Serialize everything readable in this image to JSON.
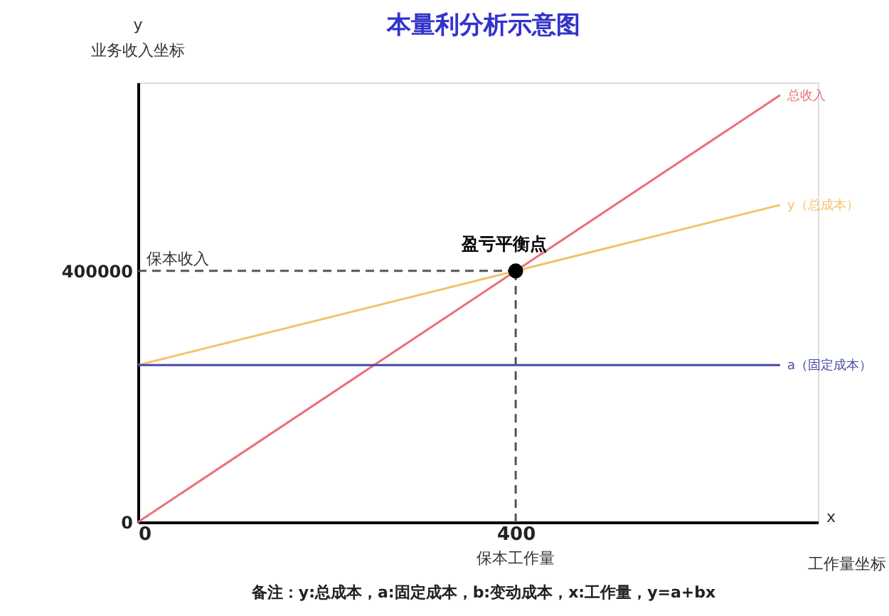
{
  "chart_data": {
    "type": "line",
    "title": "本量利分析示意图",
    "xlabel": "x\n工作量坐标",
    "ylabel": "y\n业务收入坐标",
    "xlim": [
      0,
      720
    ],
    "ylim": [
      0,
      700000
    ],
    "xticks": [
      0,
      400
    ],
    "yticks": [
      0,
      400000
    ],
    "grid": false,
    "marker": "none",
    "line_style": "solid",
    "series": [
      {
        "name": "总收入",
        "color": "#e8707a",
        "x": [
          0,
          680
        ],
        "values": [
          0,
          680000
        ]
      },
      {
        "name": "y（总成本）",
        "color": "#f5c26b",
        "x": [
          0,
          680
        ],
        "values": [
          250000,
          505000
        ]
      },
      {
        "name": "a（固定成本）",
        "color": "#4a4aa8",
        "x": [
          0,
          680
        ],
        "values": [
          250000,
          250000
        ]
      },
      {
        "name": "盈亏平衡点",
        "type": "scatter",
        "marker": "circle",
        "color": "#000000",
        "x": [
          400
        ],
        "values": [
          400000
        ]
      }
    ],
    "ref_lines": [
      {
        "axis": "x",
        "value": 400,
        "label": "保本工作量",
        "line_style": "dashed",
        "color": "#555555"
      },
      {
        "axis": "y",
        "value": 400000,
        "label": "保本收入",
        "line_style": "dashed",
        "color": "#555555"
      }
    ],
    "annotations": [
      "备注：y:总成本，a:固定成本，b:变动成本，x:工作量，y=a+bx"
    ]
  }
}
